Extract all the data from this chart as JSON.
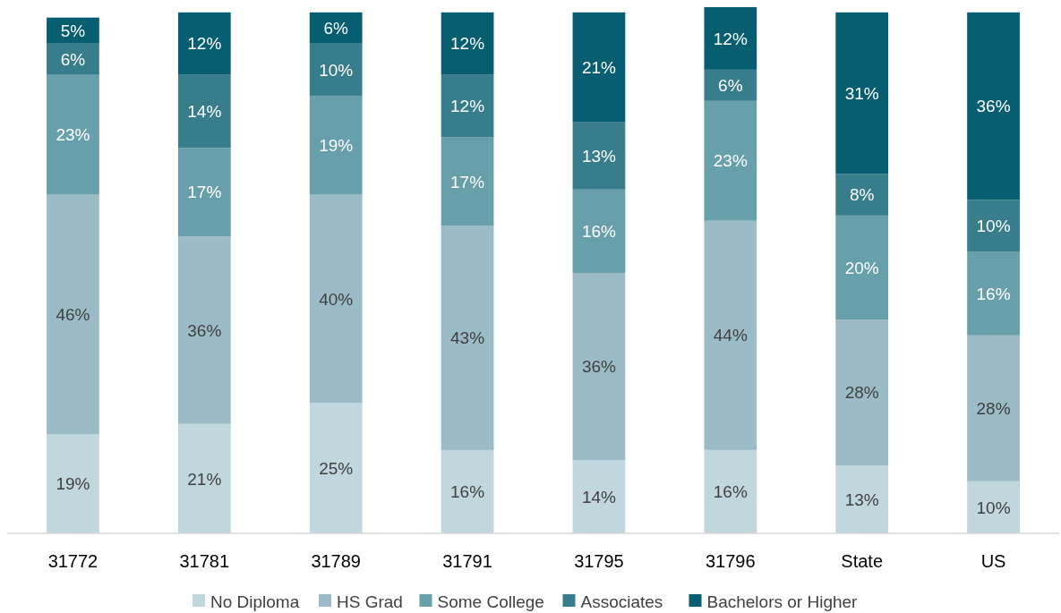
{
  "chart_data": {
    "type": "bar",
    "stacked": true,
    "categories": [
      "31772",
      "31781",
      "31789",
      "31791",
      "31795",
      "31796",
      "State",
      "US"
    ],
    "series": [
      {
        "name": "No Diploma",
        "color": "#c1d7de",
        "values": [
          19,
          21,
          25,
          16,
          14,
          16,
          13,
          10
        ],
        "value_labels": [
          "19%",
          "21%",
          "25%",
          "16%",
          "14%",
          "16%",
          "13%",
          "10%"
        ]
      },
      {
        "name": "HS Grad",
        "color": "#9bbcc6",
        "values": [
          46,
          36,
          40,
          43,
          36,
          44,
          28,
          28
        ],
        "value_labels": [
          "46%",
          "36%",
          "40%",
          "43%",
          "36%",
          "44%",
          "28%",
          "28%"
        ]
      },
      {
        "name": "Some College",
        "color": "#679fab",
        "values": [
          23,
          17,
          19,
          17,
          16,
          23,
          20,
          16
        ],
        "value_labels": [
          "23%",
          "17%",
          "19%",
          "17%",
          "16%",
          "23%",
          "20%",
          "16%"
        ]
      },
      {
        "name": "Associates",
        "color": "#387d8c",
        "values": [
          6,
          14,
          10,
          12,
          13,
          6,
          8,
          10
        ],
        "value_labels": [
          "6%",
          "14%",
          "10%",
          "12%",
          "13%",
          "6%",
          "8%",
          "10%"
        ]
      },
      {
        "name": "Bachelors or Higher",
        "color": "#065e70",
        "values": [
          5,
          12,
          6,
          12,
          21,
          12,
          31,
          36
        ],
        "value_labels": [
          "5%",
          "12%",
          "6%",
          "12%",
          "21%",
          "12%",
          "31%",
          "36%"
        ]
      }
    ],
    "ylim": [
      0,
      101
    ],
    "tick_labels": "x",
    "legend": "bottom"
  }
}
